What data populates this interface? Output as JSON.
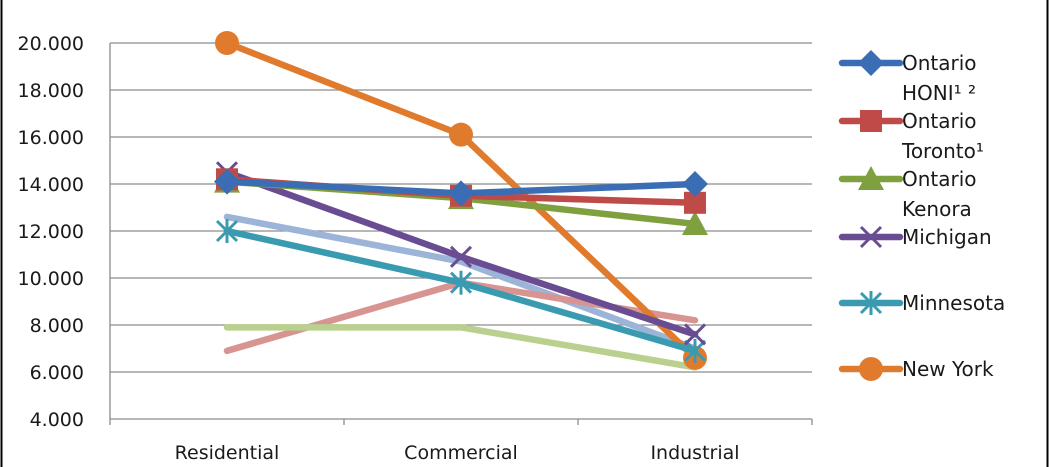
{
  "chart_data": {
    "type": "line",
    "title": "",
    "xlabel": "",
    "ylabel": "",
    "categories": [
      "Residential",
      "Commercial",
      "Industrial"
    ],
    "ylim": [
      4,
      20
    ],
    "yticks": [
      "4.000",
      "6.000",
      "8.000",
      "10.000",
      "12.000",
      "14.000",
      "16.000",
      "18.000",
      "20.000"
    ],
    "grid": true,
    "legend_position": "right",
    "series": [
      {
        "name": "Ontario HONI¹ ²",
        "legend_lines": [
          "Ontario",
          "HONI¹ ²"
        ],
        "values": [
          14.1,
          13.6,
          14.0
        ],
        "color": "#3a6db3",
        "marker": "diamond"
      },
      {
        "name": "Ontario Toronto¹",
        "legend_lines": [
          "Ontario",
          "Toronto¹"
        ],
        "values": [
          14.2,
          13.5,
          13.2
        ],
        "color": "#be4b48",
        "marker": "square"
      },
      {
        "name": "Ontario Kenora",
        "legend_lines": [
          "Ontario",
          "Kenora"
        ],
        "values": [
          14.1,
          13.4,
          12.3
        ],
        "color": "#7fa03e",
        "marker": "triangle"
      },
      {
        "name": "Michigan",
        "legend_lines": [
          "Michigan"
        ],
        "values": [
          14.5,
          10.9,
          7.6
        ],
        "color": "#6a4c93",
        "marker": "x"
      },
      {
        "name": "Minnesota",
        "legend_lines": [
          "Minnesota"
        ],
        "values": [
          12.0,
          9.8,
          6.9
        ],
        "color": "#3a9bb0",
        "marker": "star"
      },
      {
        "name": "New York",
        "legend_lines": [
          "New York"
        ],
        "values": [
          20.0,
          16.1,
          6.6
        ],
        "color": "#e07b2e",
        "marker": "circle"
      },
      {
        "name": "",
        "legend_lines": [],
        "values": [
          12.6,
          10.7,
          7.0
        ],
        "color": "#9bb4d8",
        "marker": "none"
      },
      {
        "name": "",
        "legend_lines": [],
        "values": [
          6.9,
          9.8,
          8.2
        ],
        "color": "#d89491",
        "marker": "none"
      },
      {
        "name": "",
        "legend_lines": [],
        "values": [
          7.9,
          7.9,
          6.2
        ],
        "color": "#b9d08e",
        "marker": "none"
      }
    ]
  }
}
